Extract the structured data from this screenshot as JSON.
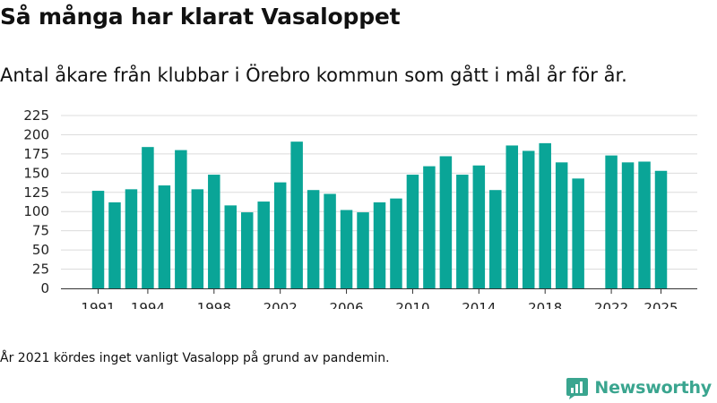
{
  "title": "Så många har klarat Vasaloppet",
  "subtitle": "Antal åkare från klubbar i Örebro kommun som gått i mål år för år.",
  "note": "År 2021 kördes inget vanligt Vasalopp på grund av pandemin.",
  "brand": {
    "name": "Newsworthy",
    "icon": "newsworthy-logo-icon",
    "color": "#3aa58f"
  },
  "colors": {
    "bar": "#0aa597",
    "grid": "#dcdcdc",
    "axis": "#333333"
  },
  "chart_data": {
    "type": "bar",
    "title": "Så många har klarat Vasaloppet",
    "xlabel": "",
    "ylabel": "",
    "ylim": [
      0,
      225
    ],
    "yticks": [
      0,
      25,
      50,
      75,
      100,
      125,
      150,
      175,
      200,
      225
    ],
    "xtick_labels": [
      "1991",
      "1994",
      "1998",
      "2002",
      "2006",
      "2010",
      "2014",
      "2018",
      "2022",
      "2025"
    ],
    "grid": true,
    "categories": [
      1991,
      1992,
      1993,
      1994,
      1995,
      1996,
      1997,
      1998,
      1999,
      2000,
      2001,
      2002,
      2003,
      2004,
      2005,
      2006,
      2007,
      2008,
      2009,
      2010,
      2011,
      2012,
      2013,
      2014,
      2015,
      2016,
      2017,
      2018,
      2019,
      2020,
      2021,
      2022,
      2023,
      2024,
      2025
    ],
    "values": [
      127,
      112,
      129,
      184,
      134,
      180,
      129,
      148,
      108,
      99,
      113,
      138,
      191,
      128,
      123,
      102,
      99,
      112,
      117,
      148,
      159,
      172,
      148,
      160,
      128,
      186,
      179,
      189,
      164,
      143,
      null,
      173,
      164,
      165,
      153
    ]
  }
}
